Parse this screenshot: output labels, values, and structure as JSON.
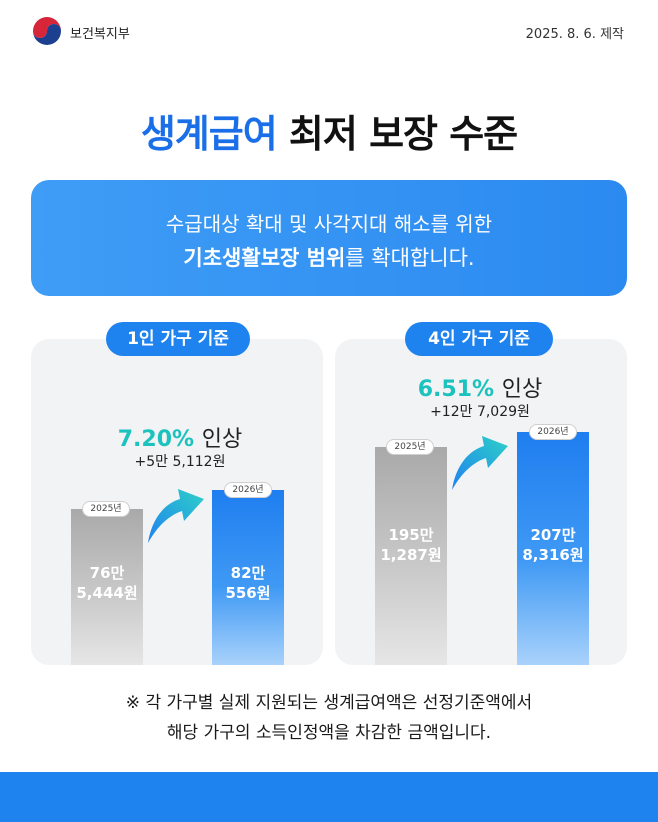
{
  "header": {
    "ministry": "보건복지부",
    "date": "2025. 8. 6. 제작"
  },
  "title": {
    "highlight": "생계급여",
    "rest": "최저 보장 수준"
  },
  "banner": {
    "line1": "수급대상 확대 및 사각지대 해소를 위한",
    "line2_bold": "기초생활보장 범위",
    "line2_rest": "를 확대합니다."
  },
  "one_person": {
    "label": "1인 가구 기준",
    "rate": "7.20%",
    "rate_word": "인상",
    "diff": "+5만 5,112원",
    "bar2025": {
      "year": "2025년",
      "line1": "76만",
      "line2": "5,444원"
    },
    "bar2026": {
      "year": "2026년",
      "line1": "82만",
      "line2": "556원"
    }
  },
  "four_person": {
    "label": "4인 가구 기준",
    "rate": "6.51%",
    "rate_word": "인상",
    "diff": "+12만 7,029원",
    "bar2025": {
      "year": "2025년",
      "line1": "195만",
      "line2": "1,287원"
    },
    "bar2026": {
      "year": "2026년",
      "line1": "207만",
      "line2": "8,316원"
    }
  },
  "note": {
    "line1": "※ 각 가구별 실제 지원되는 생계급여액은 선정기준액에서",
    "line2": "해당 가구의 소득인정액을 차감한 금액입니다."
  },
  "colors": {
    "accent_blue": "#1e82ef",
    "title_blue": "#1a6fe8",
    "rate_teal": "#1cc2bd"
  }
}
